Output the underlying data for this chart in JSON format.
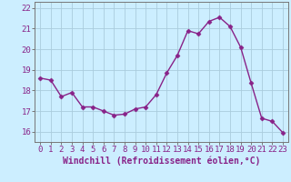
{
  "x": [
    0,
    1,
    2,
    3,
    4,
    5,
    6,
    7,
    8,
    9,
    10,
    11,
    12,
    13,
    14,
    15,
    16,
    17,
    18,
    19,
    20,
    21,
    22,
    23
  ],
  "y": [
    18.6,
    18.5,
    17.7,
    17.9,
    17.2,
    17.2,
    17.0,
    16.8,
    16.85,
    17.1,
    17.2,
    17.8,
    18.85,
    19.7,
    20.9,
    20.75,
    21.35,
    21.55,
    21.1,
    20.1,
    18.35,
    16.65,
    16.5,
    15.95
  ],
  "line_color": "#882288",
  "marker": "D",
  "markersize": 2.5,
  "linewidth": 1.0,
  "bg_color": "#cceeff",
  "grid_color": "#aaccdd",
  "xlabel": "Windchill (Refroidissement éolien,°C)",
  "xlabel_fontsize": 7,
  "tick_fontsize": 6.5,
  "ylim": [
    15.5,
    22.3
  ],
  "yticks": [
    16,
    17,
    18,
    19,
    20,
    21,
    22
  ],
  "xticks": [
    0,
    1,
    2,
    3,
    4,
    5,
    6,
    7,
    8,
    9,
    10,
    11,
    12,
    13,
    14,
    15,
    16,
    17,
    18,
    19,
    20,
    21,
    22,
    23
  ],
  "spine_color": "#777777"
}
